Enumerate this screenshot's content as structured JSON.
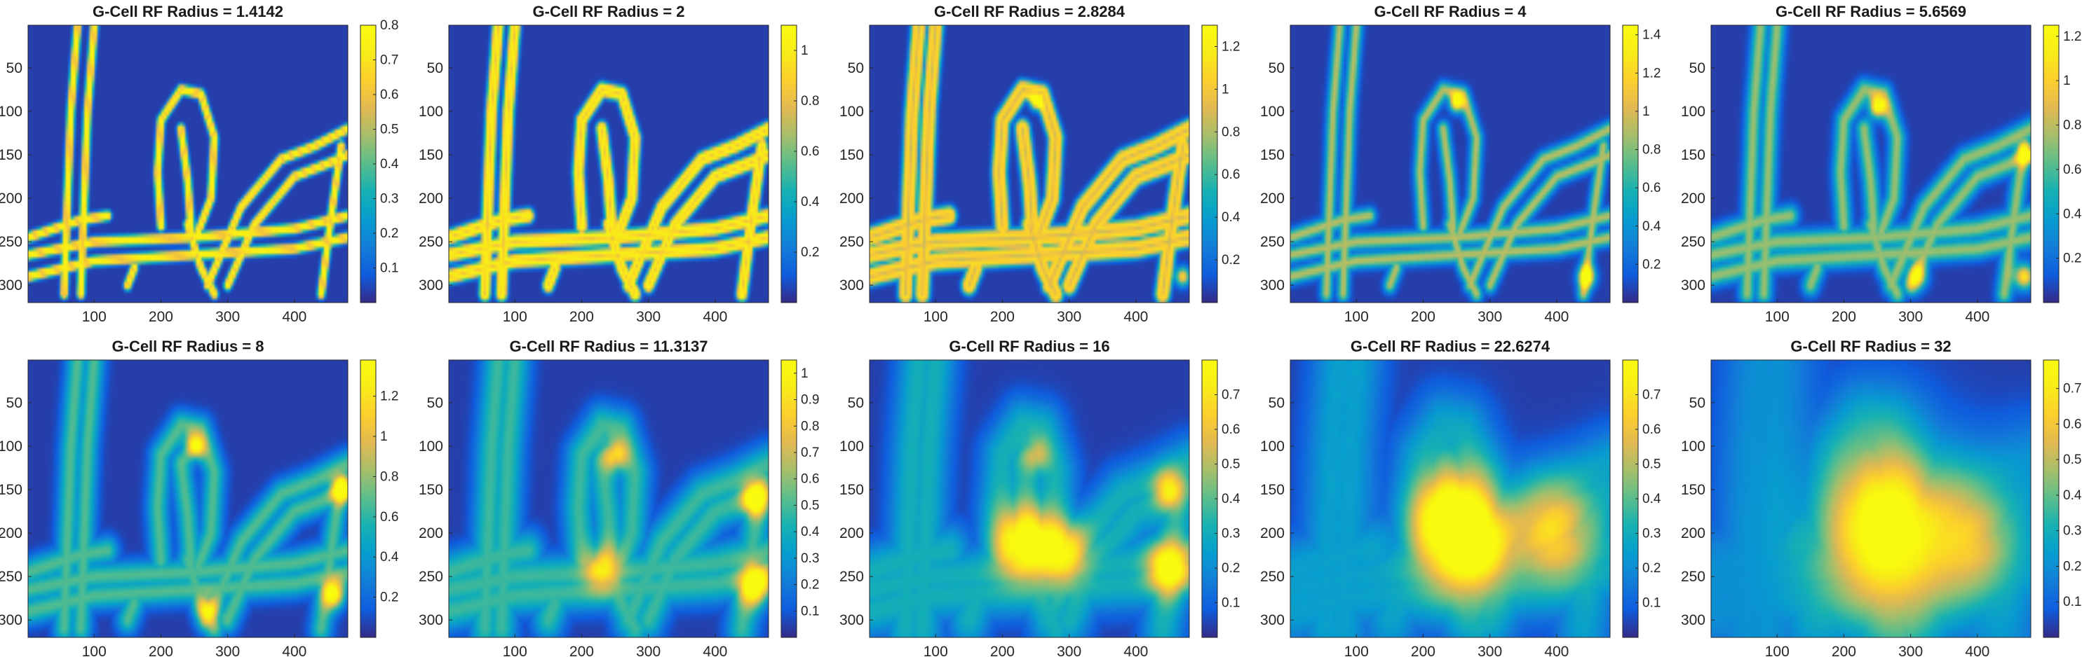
{
  "chart_data": [
    {
      "type": "heatmap",
      "title": "G-Cell RF Radius = 1.4142",
      "x_ticks": [
        100,
        200,
        300,
        400
      ],
      "y_ticks": [
        50,
        100,
        150,
        200,
        250,
        300
      ],
      "xlim": [
        1,
        480
      ],
      "ylim": [
        1,
        320
      ],
      "y_reversed": true,
      "colormap": "parula",
      "clim": [
        0,
        0.8
      ],
      "colorbar_ticks": [
        0.1,
        0.2,
        0.3,
        0.4,
        0.5,
        0.6,
        0.7,
        0.8
      ],
      "blur": 2,
      "edge_amp": 0.72,
      "hotspots": []
    },
    {
      "type": "heatmap",
      "title": "G-Cell RF Radius = 2",
      "x_ticks": [
        100,
        200,
        300,
        400
      ],
      "y_ticks": [
        50,
        100,
        150,
        200,
        250,
        300
      ],
      "xlim": [
        1,
        480
      ],
      "ylim": [
        1,
        320
      ],
      "y_reversed": true,
      "colormap": "parula",
      "clim": [
        0,
        1.1
      ],
      "colorbar_ticks": [
        0.2,
        0.4,
        0.6,
        0.8,
        1
      ],
      "blur": 3,
      "edge_amp": 0.78,
      "hotspots": []
    },
    {
      "type": "heatmap",
      "title": "G-Cell RF Radius = 2.8284",
      "x_ticks": [
        100,
        200,
        300,
        400
      ],
      "y_ticks": [
        50,
        100,
        150,
        200,
        250,
        300
      ],
      "xlim": [
        1,
        480
      ],
      "ylim": [
        1,
        320
      ],
      "y_reversed": true,
      "colormap": "parula",
      "clim": [
        0,
        1.3
      ],
      "colorbar_ticks": [
        0.2,
        0.4,
        0.6,
        0.8,
        1,
        1.2
      ],
      "blur": 4,
      "edge_amp": 0.72,
      "hotspots": [
        [
          250,
          90,
          8,
          0.9
        ],
        [
          470,
          290,
          10,
          0.8
        ]
      ]
    },
    {
      "type": "heatmap",
      "title": "G-Cell RF Radius = 4",
      "x_ticks": [
        100,
        200,
        300,
        400
      ],
      "y_ticks": [
        50,
        100,
        150,
        200,
        250,
        300
      ],
      "xlim": [
        1,
        480
      ],
      "ylim": [
        1,
        320
      ],
      "y_reversed": true,
      "colormap": "parula",
      "clim": [
        0,
        1.45
      ],
      "colorbar_ticks": [
        0.2,
        0.4,
        0.6,
        0.8,
        1,
        1.2,
        1.4
      ],
      "blur": 6,
      "edge_amp": 0.6,
      "hotspots": [
        [
          250,
          90,
          10,
          1.0
        ],
        [
          445,
          290,
          12,
          0.9
        ]
      ]
    },
    {
      "type": "heatmap",
      "title": "G-Cell RF Radius = 5.6569",
      "x_ticks": [
        100,
        200,
        300,
        400
      ],
      "y_ticks": [
        50,
        100,
        150,
        200,
        250,
        300
      ],
      "xlim": [
        1,
        480
      ],
      "ylim": [
        1,
        320
      ],
      "y_reversed": true,
      "colormap": "parula",
      "clim": [
        0,
        1.25
      ],
      "colorbar_ticks": [
        0.2,
        0.4,
        0.6,
        0.8,
        1,
        1.2
      ],
      "blur": 8,
      "edge_amp": 0.55,
      "hotspots": [
        [
          250,
          95,
          12,
          0.95
        ],
        [
          470,
          150,
          12,
          0.75
        ],
        [
          470,
          290,
          14,
          0.85
        ],
        [
          310,
          290,
          14,
          0.65
        ]
      ]
    },
    {
      "type": "heatmap",
      "title": "G-Cell RF Radius = 8",
      "x_ticks": [
        100,
        200,
        300,
        400
      ],
      "y_ticks": [
        50,
        100,
        150,
        200,
        250,
        300
      ],
      "xlim": [
        1,
        480
      ],
      "ylim": [
        1,
        320
      ],
      "y_reversed": true,
      "colormap": "parula",
      "clim": [
        0,
        1.38
      ],
      "colorbar_ticks": [
        0.2,
        0.4,
        0.6,
        0.8,
        1,
        1.2
      ],
      "blur": 11,
      "edge_amp": 0.45,
      "hotspots": [
        [
          250,
          100,
          14,
          0.9
        ],
        [
          470,
          150,
          14,
          0.95
        ],
        [
          460,
          270,
          16,
          0.85
        ],
        [
          270,
          290,
          16,
          0.55
        ]
      ]
    },
    {
      "type": "heatmap",
      "title": "G-Cell RF Radius = 11.3137",
      "x_ticks": [
        100,
        200,
        300,
        400
      ],
      "y_ticks": [
        50,
        100,
        150,
        200,
        250,
        300
      ],
      "xlim": [
        1,
        480
      ],
      "ylim": [
        1,
        320
      ],
      "y_reversed": true,
      "colormap": "parula",
      "clim": [
        0,
        1.05
      ],
      "colorbar_ticks": [
        0.1,
        0.2,
        0.3,
        0.4,
        0.5,
        0.6,
        0.7,
        0.8,
        0.9,
        1
      ],
      "blur": 16,
      "edge_amp": 0.42,
      "hotspots": [
        [
          250,
          110,
          18,
          0.6
        ],
        [
          460,
          160,
          18,
          0.95
        ],
        [
          460,
          260,
          22,
          0.9
        ],
        [
          230,
          240,
          26,
          0.5
        ]
      ]
    },
    {
      "type": "heatmap",
      "title": "G-Cell RF Radius = 16",
      "x_ticks": [
        100,
        200,
        300,
        400
      ],
      "y_ticks": [
        50,
        100,
        150,
        200,
        250,
        300
      ],
      "xlim": [
        1,
        480
      ],
      "ylim": [
        1,
        320
      ],
      "y_reversed": true,
      "colormap": "parula",
      "clim": [
        0,
        0.8
      ],
      "colorbar_ticks": [
        0.1,
        0.2,
        0.3,
        0.4,
        0.5,
        0.6,
        0.7
      ],
      "blur": 22,
      "edge_amp": 0.35,
      "hotspots": [
        [
          230,
          210,
          40,
          0.8
        ],
        [
          290,
          220,
          35,
          0.65
        ],
        [
          450,
          240,
          30,
          0.8
        ],
        [
          450,
          150,
          22,
          0.6
        ],
        [
          250,
          110,
          20,
          0.4
        ]
      ]
    },
    {
      "type": "heatmap",
      "title": "G-Cell RF Radius = 22.6274",
      "x_ticks": [
        100,
        200,
        300,
        400
      ],
      "y_ticks": [
        50,
        100,
        150,
        200,
        250,
        300
      ],
      "xlim": [
        1,
        480
      ],
      "ylim": [
        1,
        320
      ],
      "y_reversed": true,
      "colormap": "parula",
      "clim": [
        0,
        0.8
      ],
      "colorbar_ticks": [
        0.1,
        0.2,
        0.3,
        0.4,
        0.5,
        0.6,
        0.7
      ],
      "blur": 30,
      "edge_amp": 0.28,
      "hotspots": [
        [
          260,
          200,
          70,
          0.85
        ],
        [
          230,
          180,
          40,
          0.35
        ],
        [
          400,
          200,
          55,
          0.55
        ],
        [
          280,
          215,
          35,
          0.3
        ]
      ]
    },
    {
      "type": "heatmap",
      "title": "G-Cell RF Radius = 32",
      "x_ticks": [
        100,
        200,
        300,
        400
      ],
      "y_ticks": [
        50,
        100,
        150,
        200,
        250,
        300
      ],
      "xlim": [
        1,
        480
      ],
      "ylim": [
        1,
        320
      ],
      "y_reversed": true,
      "colormap": "parula",
      "clim": [
        0,
        0.78
      ],
      "colorbar_ticks": [
        0.1,
        0.2,
        0.3,
        0.4,
        0.5,
        0.6,
        0.7
      ],
      "blur": 40,
      "edge_amp": 0.22,
      "hotspots": [
        [
          270,
          200,
          110,
          0.72
        ],
        [
          260,
          190,
          50,
          0.25
        ],
        [
          400,
          210,
          60,
          0.35
        ]
      ]
    }
  ],
  "colors": {
    "background": "#ffffff",
    "axis": "#262626",
    "colormap_name": "parula"
  }
}
